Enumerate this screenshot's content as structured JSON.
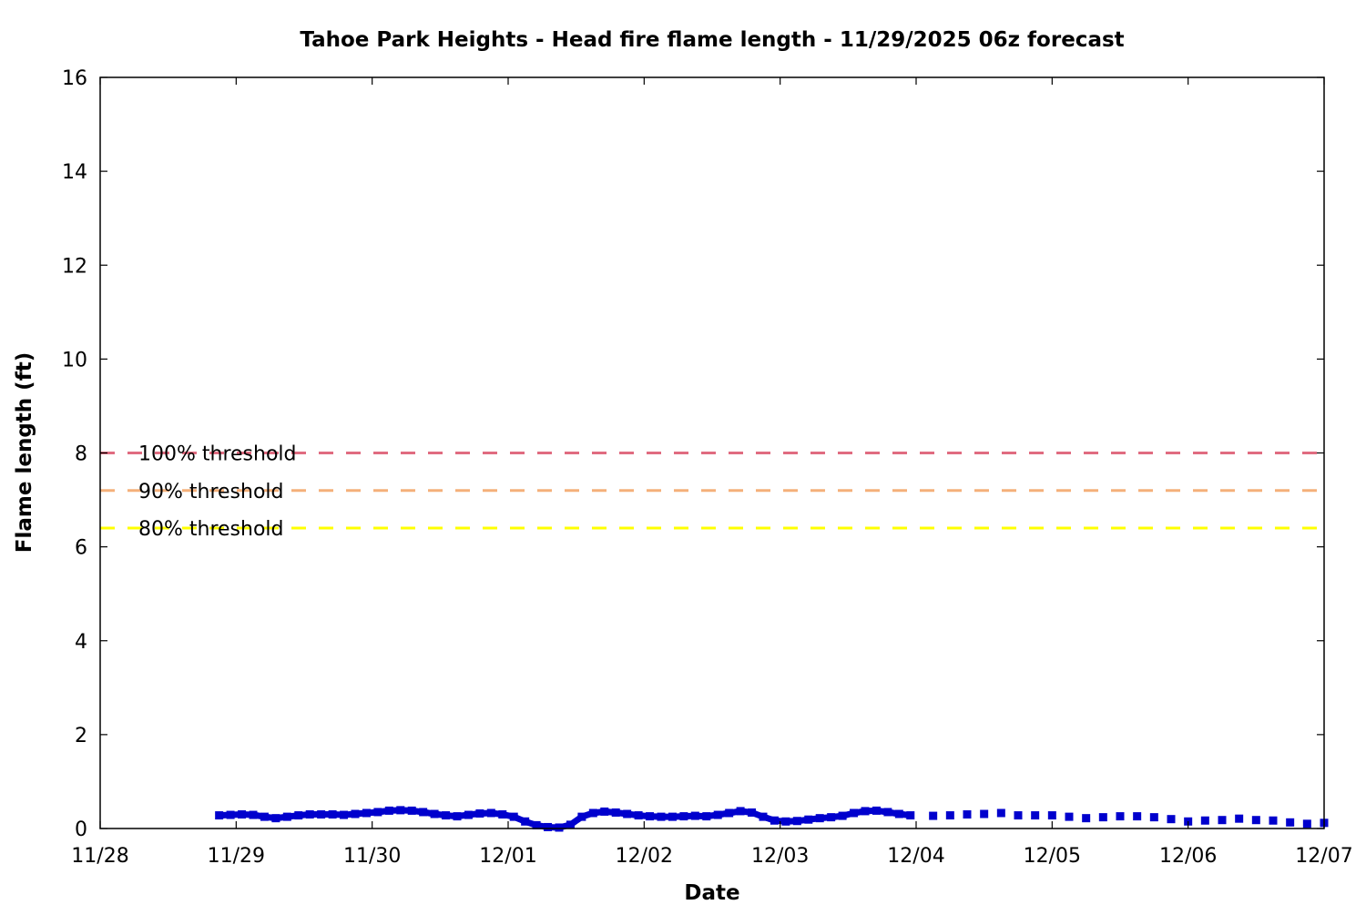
{
  "chart_data": {
    "type": "scatter",
    "title": "Tahoe Park Heights - Head fire flame length - 11/29/2025 06z forecast",
    "xlabel": "Date",
    "ylabel": "Flame length (ft)",
    "xlim": [
      "11/28",
      "12/07"
    ],
    "ylim": [
      0,
      16
    ],
    "x_ticks": [
      "11/28",
      "11/29",
      "11/30",
      "12/01",
      "12/02",
      "12/03",
      "12/04",
      "12/05",
      "12/06",
      "12/07"
    ],
    "y_ticks": [
      "0",
      "2",
      "4",
      "6",
      "8",
      "10",
      "12",
      "14",
      "16"
    ],
    "grid": false,
    "legend": "none",
    "colors": {
      "series": "#0000cd",
      "threshold_100": "#e06c80",
      "threshold_90": "#f4b07a",
      "threshold_80": "#ffff00"
    },
    "thresholds": [
      {
        "label": "100% threshold",
        "value": 8.0,
        "color_key": "threshold_100"
      },
      {
        "label": "90% threshold",
        "value": 7.2,
        "color_key": "threshold_90"
      },
      {
        "label": "80% threshold",
        "value": 6.4,
        "color_key": "threshold_80"
      }
    ],
    "series": [
      {
        "style": "dense-markers",
        "points": [
          [
            "11/28 21:00",
            0.28
          ],
          [
            "11/28 23:00",
            0.29
          ],
          [
            "11/29 01:00",
            0.3
          ],
          [
            "11/29 03:00",
            0.29
          ],
          [
            "11/29 05:00",
            0.25
          ],
          [
            "11/29 07:00",
            0.22
          ],
          [
            "11/29 09:00",
            0.25
          ],
          [
            "11/29 11:00",
            0.28
          ],
          [
            "11/29 13:00",
            0.3
          ],
          [
            "11/29 15:00",
            0.3
          ],
          [
            "11/29 17:00",
            0.3
          ],
          [
            "11/29 19:00",
            0.29
          ],
          [
            "11/29 21:00",
            0.31
          ],
          [
            "11/29 23:00",
            0.33
          ],
          [
            "11/30 01:00",
            0.35
          ],
          [
            "11/30 03:00",
            0.38
          ],
          [
            "11/30 05:00",
            0.39
          ],
          [
            "11/30 07:00",
            0.38
          ],
          [
            "11/30 09:00",
            0.35
          ],
          [
            "11/30 11:00",
            0.31
          ],
          [
            "11/30 13:00",
            0.28
          ],
          [
            "11/30 15:00",
            0.26
          ],
          [
            "11/30 17:00",
            0.29
          ],
          [
            "11/30 19:00",
            0.32
          ],
          [
            "11/30 21:00",
            0.33
          ],
          [
            "11/30 23:00",
            0.3
          ],
          [
            "12/01 01:00",
            0.25
          ],
          [
            "12/01 03:00",
            0.15
          ],
          [
            "12/01 05:00",
            0.07
          ],
          [
            "12/01 07:00",
            0.03
          ],
          [
            "12/01 09:00",
            0.02
          ],
          [
            "12/01 11:00",
            0.08
          ],
          [
            "12/01 13:00",
            0.25
          ],
          [
            "12/01 15:00",
            0.33
          ],
          [
            "12/01 17:00",
            0.36
          ],
          [
            "12/01 19:00",
            0.34
          ],
          [
            "12/01 21:00",
            0.31
          ],
          [
            "12/01 23:00",
            0.28
          ],
          [
            "12/02 01:00",
            0.26
          ],
          [
            "12/02 03:00",
            0.25
          ],
          [
            "12/02 05:00",
            0.25
          ],
          [
            "12/02 07:00",
            0.26
          ],
          [
            "12/02 09:00",
            0.27
          ],
          [
            "12/02 11:00",
            0.26
          ],
          [
            "12/02 13:00",
            0.29
          ],
          [
            "12/02 15:00",
            0.33
          ],
          [
            "12/02 17:00",
            0.37
          ],
          [
            "12/02 19:00",
            0.34
          ],
          [
            "12/02 21:00",
            0.25
          ],
          [
            "12/02 23:00",
            0.17
          ],
          [
            "12/03 01:00",
            0.15
          ],
          [
            "12/03 03:00",
            0.16
          ],
          [
            "12/03 05:00",
            0.19
          ],
          [
            "12/03 07:00",
            0.22
          ],
          [
            "12/03 09:00",
            0.24
          ],
          [
            "12/03 11:00",
            0.27
          ],
          [
            "12/03 13:00",
            0.33
          ],
          [
            "12/03 15:00",
            0.37
          ],
          [
            "12/03 17:00",
            0.38
          ],
          [
            "12/03 19:00",
            0.35
          ],
          [
            "12/03 21:00",
            0.31
          ],
          [
            "12/03 23:00",
            0.28
          ]
        ]
      },
      {
        "style": "sparse-markers",
        "points": [
          [
            "12/04 03:00",
            0.27
          ],
          [
            "12/04 06:00",
            0.28
          ],
          [
            "12/04 09:00",
            0.3
          ],
          [
            "12/04 12:00",
            0.31
          ],
          [
            "12/04 15:00",
            0.33
          ],
          [
            "12/04 18:00",
            0.28
          ],
          [
            "12/04 21:00",
            0.28
          ],
          [
            "12/05 00:00",
            0.28
          ],
          [
            "12/05 03:00",
            0.25
          ],
          [
            "12/05 06:00",
            0.22
          ],
          [
            "12/05 09:00",
            0.24
          ],
          [
            "12/05 12:00",
            0.26
          ],
          [
            "12/05 15:00",
            0.26
          ],
          [
            "12/05 18:00",
            0.24
          ],
          [
            "12/05 21:00",
            0.2
          ],
          [
            "12/06 00:00",
            0.15
          ],
          [
            "12/06 03:00",
            0.17
          ],
          [
            "12/06 06:00",
            0.18
          ],
          [
            "12/06 09:00",
            0.21
          ],
          [
            "12/06 12:00",
            0.18
          ],
          [
            "12/06 15:00",
            0.17
          ],
          [
            "12/06 18:00",
            0.13
          ],
          [
            "12/06 21:00",
            0.1
          ],
          [
            "12/07 00:00",
            0.12
          ]
        ]
      }
    ]
  }
}
